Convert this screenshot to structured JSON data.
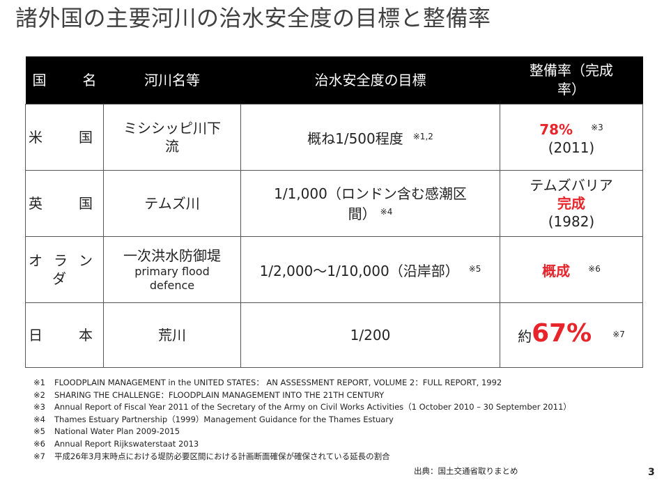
{
  "title": "諸外国の主要河川の治水安全度の目標と整備率",
  "table": {
    "headers": {
      "country": [
        "国",
        "名"
      ],
      "river": "河川名等",
      "target": "治水安全度の目標",
      "rate_line1": "整備率（完成",
      "rate_line2": "率）"
    },
    "rows": [
      {
        "country": [
          "米",
          "国"
        ],
        "river_line1": "ミシシッピ川下",
        "river_line2": "流",
        "target": "概ね1/500程度",
        "target_note": "※1,2",
        "rate_value": "78%",
        "rate_note": "※3",
        "rate_year": "(2011)"
      },
      {
        "country": [
          "英",
          "国"
        ],
        "river": "テムズ川",
        "target_line1": "1/1,000（ロンドン含む感潮区",
        "target_line2": "間）",
        "target_note": "※4",
        "rate_line1": "テムズバリア",
        "rate_value": "完成",
        "rate_year": "(1982)"
      },
      {
        "country": [
          "オ",
          "ラ",
          "ン",
          "ダ"
        ],
        "river_line1": "一次洪水防御堤",
        "river_line2": "primary flood",
        "river_line3": "defence",
        "target": "1/2,000～1/10,000（沿岸部）",
        "target_note": "※5",
        "rate_value": "概成",
        "rate_note": "※6"
      },
      {
        "country": [
          "日",
          "本"
        ],
        "river": "荒川",
        "target": "1/200",
        "rate_prefix": "約",
        "rate_value": "67%",
        "rate_note": "※7"
      }
    ]
  },
  "footnotes": [
    {
      "mark": "※1",
      "text": "FLOODPLAIN MANAGEMENT in the UNITED STATES： AN ASSESSMENT REPORT, VOLUME 2：FULL REPORT, 1992"
    },
    {
      "mark": "※2",
      "text": "SHARING THE CHALLENGE：FLOODPLAIN MANAGEMENT INTO THE 21TH CENTURY"
    },
    {
      "mark": "※3",
      "text": "Annual Report of Fiscal Year 2011 of the Secretary of the Army on Civil Works Activities（1 October 2010 – 30 September 2011）"
    },
    {
      "mark": "※4",
      "text": "Thames Estuary Partnership（1999）Management Guidance for the Thames Estuary"
    },
    {
      "mark": "※5",
      "text": "National Water Plan 2009-2015"
    },
    {
      "mark": "※6",
      "text": "Annual Report Rijkswaterstaat 2013"
    },
    {
      "mark": "※7",
      "text": "平成26年3月末時点における堤防必要区間における計画断面確保が確保されている延長の割合"
    }
  ],
  "source": "出典：国土交通省取りまとめ",
  "page_number": "3"
}
